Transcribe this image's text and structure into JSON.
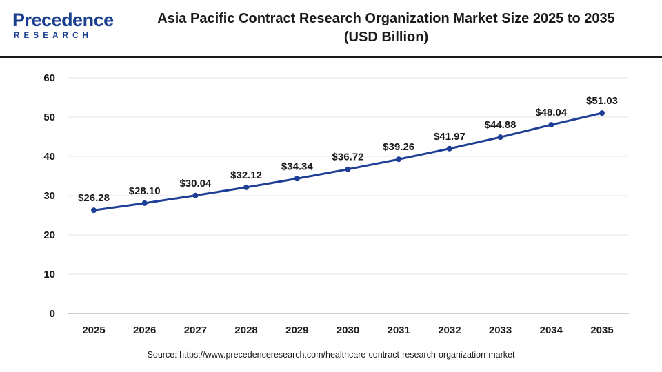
{
  "header": {
    "logo_main": "Precedence",
    "logo_sub": "RESEARCH",
    "title_line1": "Asia Pacific Contract Research Organization Market Size 2025 to 2035",
    "title_line2": "(USD Billion)"
  },
  "source": "Source: https://www.precedenceresearch.com/healthcare-contract-research-organization-market",
  "colors": {
    "line": "#1f3f97",
    "marker": "#1f3f97",
    "grid": "#e6e6e6",
    "brand": "#1b3f8f"
  },
  "chart_data": {
    "type": "line",
    "title": "Asia Pacific Contract Research Organization Market Size 2025 to 2035",
    "subtitle": "(USD Billion)",
    "xlabel": "",
    "ylabel": "",
    "categories": [
      "2025",
      "2026",
      "2027",
      "2028",
      "2029",
      "2030",
      "2031",
      "2032",
      "2033",
      "2034",
      "2035"
    ],
    "values": [
      26.28,
      28.1,
      30.04,
      32.12,
      34.34,
      36.72,
      39.26,
      41.97,
      44.88,
      48.04,
      51.03
    ],
    "labels": [
      "$26.28",
      "$28.10",
      "$30.04",
      "$32.12",
      "$34.34",
      "$36.72",
      "$39.26",
      "$41.97",
      "$44.88",
      "$48.04",
      "$51.03"
    ],
    "ylim": [
      0,
      60
    ],
    "yticks": [
      "0",
      "10",
      "20",
      "30",
      "40",
      "50",
      "60"
    ],
    "grid": true,
    "legend": "none"
  }
}
